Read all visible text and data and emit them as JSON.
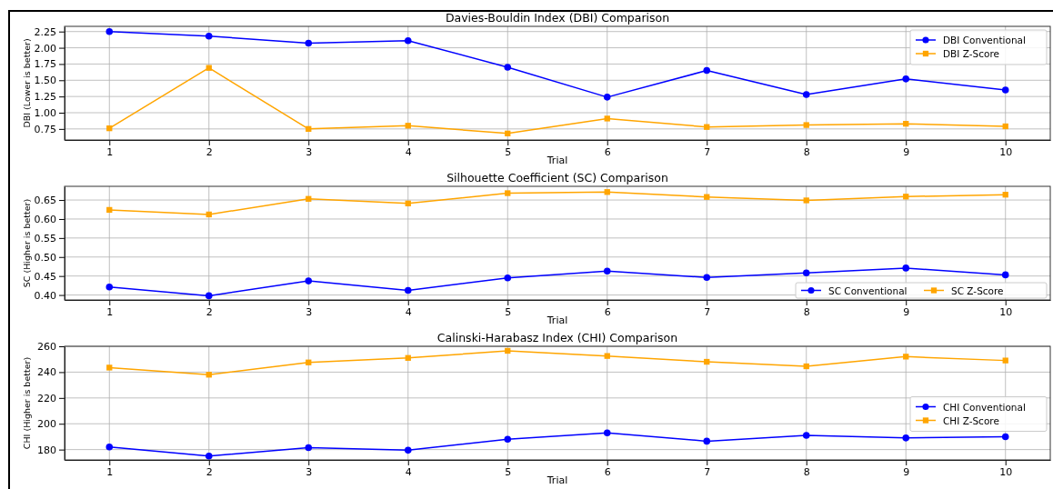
{
  "chart_data": [
    {
      "type": "line",
      "title": "Davies-Bouldin Index (DBI) Comparison",
      "xlabel": "Trial",
      "ylabel": "DBI (Lower is better)",
      "x": [
        1,
        2,
        3,
        4,
        5,
        6,
        7,
        8,
        9,
        10
      ],
      "xlim": [
        0.55,
        10.45
      ],
      "xticks": [
        1,
        2,
        3,
        4,
        5,
        6,
        7,
        8,
        9,
        10
      ],
      "ylim": [
        0.58,
        2.33
      ],
      "yticks": [
        {
          "value": 0.75,
          "label": "0.75"
        },
        {
          "value": 1,
          "label": "1.00"
        },
        {
          "value": 1.25,
          "label": "1.25"
        },
        {
          "value": 1.5,
          "label": "1.50"
        },
        {
          "value": 1.75,
          "label": "1.75"
        },
        {
          "value": 2,
          "label": "2.00"
        },
        {
          "value": 2.25,
          "label": "2.25"
        }
      ],
      "grid": true,
      "legend": "top right",
      "series": [
        {
          "name": "DBI Conventional",
          "color": "#0000ff",
          "marker": "circle",
          "values": [
            2.25,
            2.18,
            2.07,
            2.11,
            1.7,
            1.24,
            1.65,
            1.28,
            1.52,
            1.35
          ]
        },
        {
          "name": "DBI Z-Score",
          "color": "#ffa500",
          "marker": "square",
          "values": [
            0.76,
            1.69,
            0.75,
            0.8,
            0.68,
            0.91,
            0.78,
            0.81,
            0.83,
            0.79
          ]
        }
      ]
    },
    {
      "type": "line",
      "title": "Silhouette Coefficient (SC) Comparison",
      "xlabel": "Trial",
      "ylabel": "SC (Higher is better)",
      "x": [
        1,
        2,
        3,
        4,
        5,
        6,
        7,
        8,
        9,
        10
      ],
      "xlim": [
        0.55,
        10.45
      ],
      "xticks": [
        1,
        2,
        3,
        4,
        5,
        6,
        7,
        8,
        9,
        10
      ],
      "ylim": [
        0.387,
        0.686
      ],
      "yticks": [
        {
          "value": 0.4,
          "label": "0.40"
        },
        0.45,
        {
          "value": 0.5,
          "label": "0.50"
        },
        0.55,
        {
          "value": 0.6,
          "label": "0.60"
        },
        0.65
      ],
      "grid": true,
      "legend": "bottom right",
      "series": [
        {
          "name": "SC Conventional",
          "color": "#0000ff",
          "marker": "circle",
          "values": [
            0.421,
            0.398,
            0.437,
            0.412,
            0.445,
            0.463,
            0.446,
            0.458,
            0.471,
            0.453
          ]
        },
        {
          "name": "SC Z-Score",
          "color": "#ffa500",
          "marker": "square",
          "values": [
            0.624,
            0.612,
            0.653,
            0.641,
            0.668,
            0.671,
            0.658,
            0.649,
            0.659,
            0.664
          ]
        }
      ]
    },
    {
      "type": "line",
      "title": "Calinski-Harabasz Index (CHI) Comparison",
      "xlabel": "Trial",
      "ylabel": "CHI (Higher is better)",
      "x": [
        1,
        2,
        3,
        4,
        5,
        6,
        7,
        8,
        9,
        10
      ],
      "xlim": [
        0.55,
        10.45
      ],
      "xticks": [
        1,
        2,
        3,
        4,
        5,
        6,
        7,
        8,
        9,
        10
      ],
      "ylim": [
        172,
        260
      ],
      "yticks": [
        180,
        200,
        220,
        240,
        260
      ],
      "grid": true,
      "legend": "right",
      "series": [
        {
          "name": "CHI Conventional",
          "color": "#0000ff",
          "marker": "circle",
          "values": [
            182,
            175,
            181.5,
            179.5,
            188,
            193,
            186.5,
            191,
            189,
            190
          ]
        },
        {
          "name": "CHI Z-Score",
          "color": "#ffa500",
          "marker": "square",
          "values": [
            243.5,
            238,
            247.5,
            251,
            256.5,
            252.5,
            248,
            244.5,
            252,
            249
          ]
        }
      ]
    }
  ]
}
